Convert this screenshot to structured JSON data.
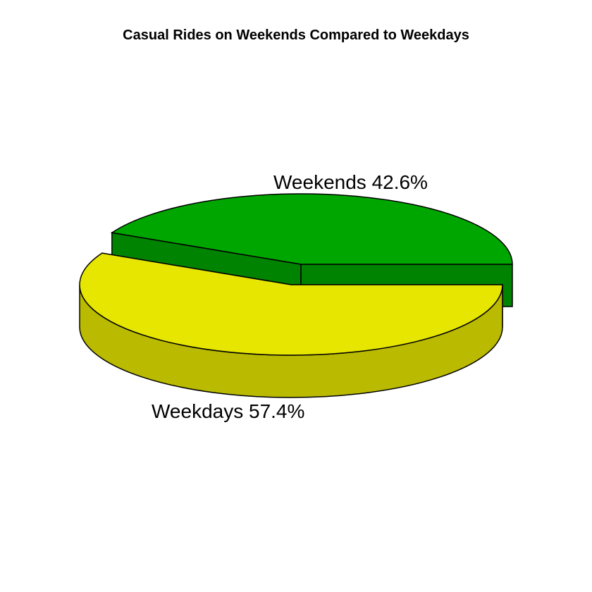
{
  "chart_data": {
    "type": "pie",
    "style": "3d-exploded",
    "title": "Casual Rides on Weekends Compared to Weekdays",
    "slices": [
      {
        "label": "Weekends",
        "value": 42.6,
        "display": "Weekends 42.6%",
        "top_color": "#00a600",
        "side_color": "#008300"
      },
      {
        "label": "Weekdays",
        "value": 57.4,
        "display": "Weekdays 57.4%",
        "top_color": "#e6e600",
        "side_color": "#baba00"
      }
    ],
    "edge_color": "#000000"
  }
}
